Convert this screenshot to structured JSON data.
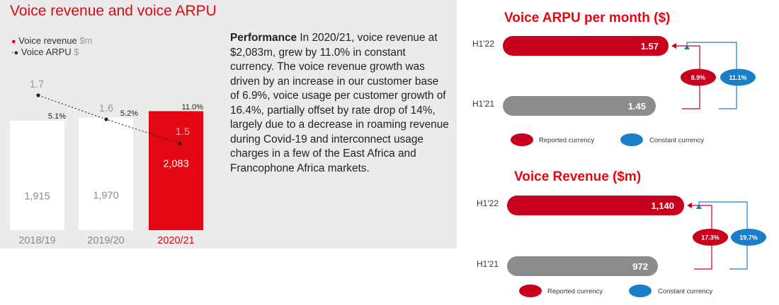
{
  "colors": {
    "brand_red": "#e30613",
    "bar_grey": "#8c8c8c",
    "pill_red": "#c8001e",
    "pill_blue": "#1a7fc6",
    "panel_bg": "#ebebeb"
  },
  "left": {
    "title": "Voice revenue and voice ARPU",
    "legend": [
      {
        "label": "Voice revenue",
        "unit": "$m"
      },
      {
        "label": "Voice ARPU",
        "unit": "$"
      }
    ],
    "performance": {
      "heading": "Performance",
      "body": "In 2020/21, voice revenue at $2,083m, grew by 11.0% in constant currency. The voice revenue growth was driven by an increase in our customer base of 6.9%, voice usage per customer growth of 16.4%, partially offset by rate drop of 14%, largely due to a decrease in roaming revenue during Covid-19 and interconnect usage charges in a few of the East Africa and Francophone Africa markets."
    }
  },
  "chart_data": [
    {
      "type": "bar",
      "title": "Voice revenue and voice ARPU",
      "categories": [
        "2018/19",
        "2019/20",
        "2020/21"
      ],
      "series": [
        {
          "name": "Voice revenue",
          "unit": "$m",
          "values": [
            1915,
            1970,
            2083
          ],
          "value_labels": [
            "1,915",
            "1,970",
            "2,083"
          ],
          "growth_labels": [
            "5.1%",
            "5.2%",
            "11.0%"
          ]
        },
        {
          "name": "Voice ARPU",
          "unit": "$",
          "type": "line",
          "values": [
            1.7,
            1.6,
            1.5
          ],
          "value_labels": [
            "1.7",
            "1.6",
            "1.5"
          ]
        }
      ],
      "highlight_category": "2020/21"
    },
    {
      "type": "bar",
      "orientation": "horizontal",
      "title": "Voice ARPU per month ($)",
      "categories": [
        "H1'22",
        "H1'21"
      ],
      "values": [
        1.57,
        1.45
      ],
      "value_labels": [
        "1.57",
        "1.45"
      ],
      "growth": [
        {
          "name": "Reported currency",
          "label": "8.9%"
        },
        {
          "name": "Constant currency",
          "label": "11.1%"
        }
      ],
      "legend": [
        "Reported currency",
        "Constant currency"
      ]
    },
    {
      "type": "bar",
      "orientation": "horizontal",
      "title": "Voice Revenue ($m)",
      "categories": [
        "H1'22",
        "H1'21"
      ],
      "values": [
        1140,
        972
      ],
      "value_labels": [
        "1,140",
        "972"
      ],
      "growth": [
        {
          "name": "Reported currency",
          "label": "17.3%"
        },
        {
          "name": "Constant currency",
          "label": "19.7%"
        }
      ],
      "legend": [
        "Reported currency",
        "Constant currency"
      ]
    }
  ]
}
